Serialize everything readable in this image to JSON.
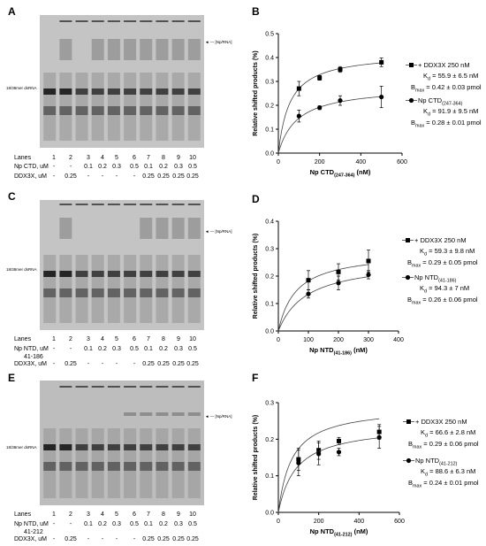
{
  "panels": {
    "A": "A",
    "B": "B",
    "C": "C",
    "D": "D",
    "E": "E",
    "F": "F"
  },
  "gels": [
    {
      "left_label": "18/38mer dsRNA",
      "right_label": "[Np/RNA]",
      "rows": [
        {
          "label": "Lanes",
          "values": [
            "1",
            "2",
            "3",
            "4",
            "5",
            "6",
            "7",
            "8",
            "9",
            "10"
          ]
        },
        {
          "label": "Np CTD, uM",
          "values": [
            "-",
            "-",
            "0.1",
            "0.2",
            "0.3",
            "0.5",
            "0.1",
            "0.2",
            "0.3",
            "0.5"
          ]
        },
        {
          "label": "DDX3X, uM",
          "values": [
            "-",
            "0.25",
            "-",
            "-",
            "-",
            "-",
            "0.25",
            "0.25",
            "0.25",
            "0.25"
          ]
        }
      ]
    },
    {
      "left_label": "18/38mer dsRNA",
      "right_label": "[Np/RNA]",
      "rows": [
        {
          "label": "Lanes",
          "values": [
            "1",
            "2",
            "3",
            "4",
            "5",
            "6",
            "7",
            "8",
            "9",
            "10"
          ]
        },
        {
          "label": "Np NTD, uM",
          "label2": "41-186",
          "values": [
            "-",
            "-",
            "0.1",
            "0.2",
            "0.3",
            "0.5",
            "0.1",
            "0.2",
            "0.3",
            "0.5"
          ]
        },
        {
          "label": "DDX3X, uM",
          "values": [
            "-",
            "0.25",
            "-",
            "-",
            "-",
            "-",
            "0.25",
            "0.25",
            "0.25",
            "0.25"
          ]
        }
      ]
    },
    {
      "left_label": "18/38mer dsRNA",
      "right_label": "[Np/RNA]",
      "rows": [
        {
          "label": "Lanes",
          "values": [
            "1",
            "2",
            "3",
            "4",
            "5",
            "6",
            "7",
            "8",
            "9",
            "10"
          ]
        },
        {
          "label": "Np NTD, uM",
          "label2": "41-212",
          "values": [
            "-",
            "-",
            "0.1",
            "0.2",
            "0.3",
            "0.5",
            "0.1",
            "0.2",
            "0.3",
            "0.5"
          ]
        },
        {
          "label": "DDX3X, uM",
          "values": [
            "-",
            "0.25",
            "-",
            "-",
            "-",
            "-",
            "0.25",
            "0.25",
            "0.25",
            "0.25"
          ]
        }
      ]
    }
  ],
  "chart_data": [
    {
      "type": "scatter",
      "ylabel": "Relative shifted products (%)",
      "xlabel_main": "Np CTD",
      "xlabel_sub": "(247-364)",
      "xlabel_unit": " (nM)",
      "xlim": [
        0,
        600
      ],
      "ylim": [
        0,
        0.5
      ],
      "xticks": [
        0,
        200,
        400,
        600
      ],
      "yticks": [
        0.0,
        0.1,
        0.2,
        0.3,
        0.4,
        0.5
      ],
      "legend_position": "right",
      "series": [
        {
          "name": "+ DDX3X 250 nM",
          "marker": "square",
          "x": [
            100,
            200,
            300,
            500
          ],
          "y": [
            0.27,
            0.315,
            0.35,
            0.38
          ],
          "err": [
            0.03,
            0.01,
            0.012,
            0.018
          ],
          "params": [
            {
              "pre": "K",
              "sub": "d",
              "text": " = 55.9 ± 6.5 nM"
            },
            {
              "pre": "B",
              "sub": "max",
              "text": " = 0.42 ± 0.03 pmol"
            }
          ]
        },
        {
          "name": "Np CTD",
          "name_sub": "(247-364)",
          "marker": "circle",
          "x": [
            100,
            200,
            300,
            500
          ],
          "y": [
            0.155,
            0.19,
            0.22,
            0.235
          ],
          "err": [
            0.025,
            0.008,
            0.02,
            0.045
          ],
          "params": [
            {
              "pre": "K",
              "sub": "d",
              "text": " = 91.9 ± 9.5 nM"
            },
            {
              "pre": "B",
              "sub": "max",
              "text": " = 0.28 ± 0.01 pmol"
            }
          ]
        }
      ]
    },
    {
      "type": "scatter",
      "ylabel": "Relative shifted products (%)",
      "xlabel_main": "Np NTD",
      "xlabel_sub": "(41-186)",
      "xlabel_unit": " (nM)",
      "xlim": [
        0,
        400
      ],
      "ylim": [
        0,
        0.4
      ],
      "xticks": [
        0,
        100,
        200,
        300,
        400
      ],
      "yticks": [
        0.0,
        0.1,
        0.2,
        0.3,
        0.4
      ],
      "legend_position": "right",
      "series": [
        {
          "name": "+ DDX3X 250 nM",
          "marker": "square",
          "x": [
            100,
            200,
            300
          ],
          "y": [
            0.185,
            0.215,
            0.255
          ],
          "err": [
            0.035,
            0.03,
            0.04
          ],
          "params": [
            {
              "pre": "K",
              "sub": "d",
              "text": " = 59.3 ± 9.8 nM"
            },
            {
              "pre": "B",
              "sub": "max",
              "text": " = 0.29 ± 0.05 pmol"
            }
          ]
        },
        {
          "name": "Np NTD",
          "name_sub": "(41-186)",
          "marker": "circle",
          "x": [
            100,
            200,
            300
          ],
          "y": [
            0.135,
            0.175,
            0.205
          ],
          "err": [
            0.015,
            0.025,
            0.015
          ],
          "params": [
            {
              "pre": "K",
              "sub": "d",
              "text": " = 94.3 ± 7 nM"
            },
            {
              "pre": "B",
              "sub": "max",
              "text": " = 0.26 ± 0.06 pmol"
            }
          ]
        }
      ]
    },
    {
      "type": "scatter",
      "ylabel": "Relative shifted products (%)",
      "xlabel_main": "Np NTD",
      "xlabel_sub": "(41-212)",
      "xlabel_unit": " (nM)",
      "xlim": [
        0,
        600
      ],
      "ylim": [
        0,
        0.3
      ],
      "xticks": [
        0,
        200,
        400,
        600
      ],
      "yticks": [
        0.0,
        0.1,
        0.2,
        0.3
      ],
      "legend_position": "right",
      "series": [
        {
          "name": "+ DDX3X 250 nM",
          "marker": "square",
          "x": [
            100,
            200,
            300,
            500
          ],
          "y": [
            0.145,
            0.17,
            0.195,
            0.22
          ],
          "err": [
            0.03,
            0.025,
            0.01,
            0.02
          ],
          "params": [
            {
              "pre": "K",
              "sub": "d",
              "text": " = 66.6 ± 2.8 nM"
            },
            {
              "pre": "B",
              "sub": "max",
              "text": " = 0.29 ± 0.06 pmol"
            }
          ]
        },
        {
          "name": "Np NTD",
          "name_sub": "(41-212)",
          "marker": "circle",
          "x": [
            100,
            200,
            300,
            500
          ],
          "y": [
            0.135,
            0.16,
            0.165,
            0.205
          ],
          "err": [
            0.035,
            0.03,
            0.01,
            0.03
          ],
          "params": [
            {
              "pre": "K",
              "sub": "d",
              "text": " = 88.6 ± 6.3 nM"
            },
            {
              "pre": "B",
              "sub": "max",
              "text": " = 0.24 ± 0.01 pmol"
            }
          ]
        }
      ]
    }
  ]
}
